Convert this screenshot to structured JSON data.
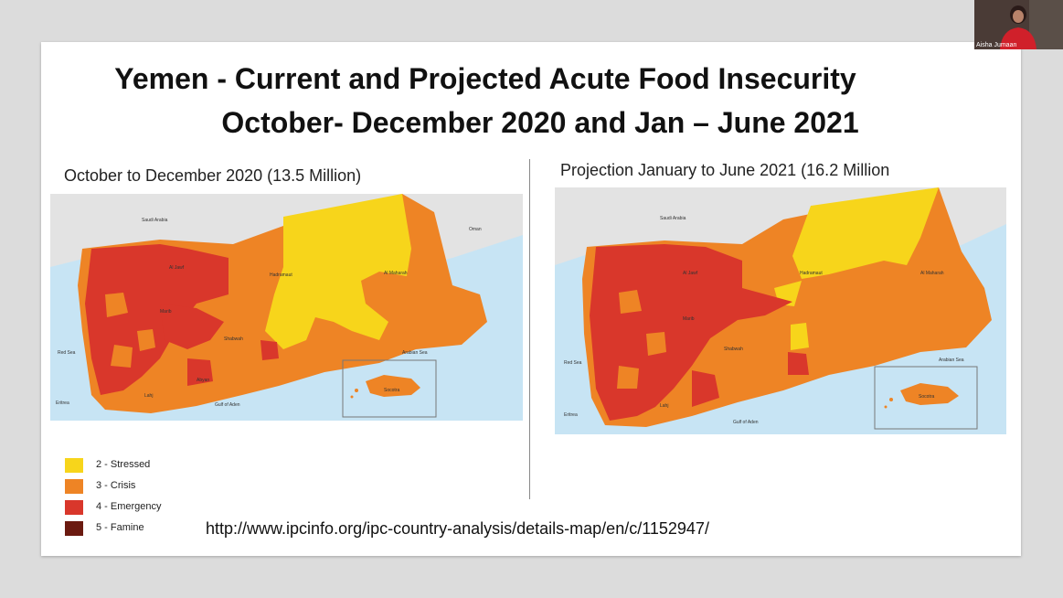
{
  "slide": {
    "title_line1": "Yemen - Current and Projected Acute Food Insecurity",
    "title_line2": "October- December 2020 and Jan – June 2021",
    "left_heading": "October to December 2020 (13.5 Million)",
    "right_heading": "Projection January to June 2021 (16.2 Million",
    "url": "http://www.ipcinfo.org/ipc-country-analysis/details-map/en/c/1152947/"
  },
  "legend": [
    {
      "label": "2 - Stressed",
      "color": "#f7d51b"
    },
    {
      "label": "3 - Crisis",
      "color": "#ee8425"
    },
    {
      "label": "4 - Emergency",
      "color": "#d9372b"
    },
    {
      "label": "5 - Famine",
      "color": "#6b1a10"
    }
  ],
  "map_labels": {
    "saudi_arabia": "Saudi Arabia",
    "oman": "Oman",
    "hadramaut": "Hadramaut",
    "al_maharah": "Al Maharah",
    "shabwah": "Shabwah",
    "marib": "Marib",
    "al_jawf": "Al Jawf",
    "red_sea": "Red Sea",
    "arabian_sea": "Arabian Sea",
    "gulf_of_aden": "Gulf of Aden",
    "eritrea": "Eritrea",
    "socotra": "Socotra",
    "lahj": "Lahj",
    "abyan": "Abyan"
  },
  "webcam": {
    "name": "Aisha Jumaan"
  }
}
